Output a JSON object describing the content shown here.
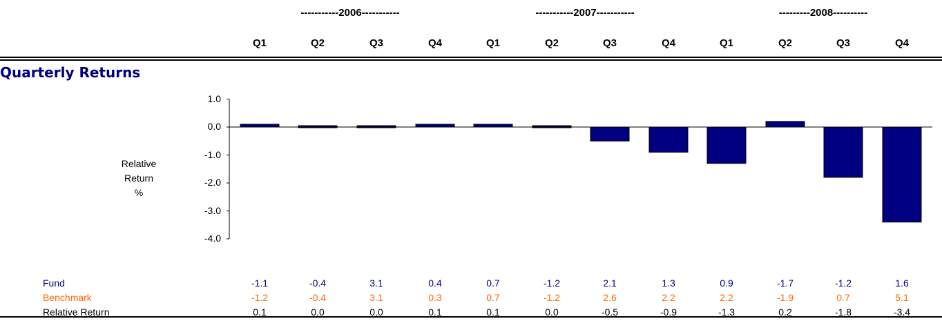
{
  "header": {
    "years": [
      "-----------2006-----------",
      "-----------2007-----------",
      "---------2008----------"
    ],
    "quarters": [
      "Q1",
      "Q2",
      "Q3",
      "Q4",
      "Q1",
      "Q2",
      "Q3",
      "Q4",
      "Q1",
      "Q2",
      "Q3",
      "Q4"
    ]
  },
  "section_title": "Quarterly Returns",
  "colors": {
    "bar": "#000080",
    "fund": "#000080",
    "benchmark": "#FF6600",
    "relative": "#000000"
  },
  "chart_data": {
    "type": "bar",
    "categories": [
      "2006 Q1",
      "2006 Q2",
      "2006 Q3",
      "2006 Q4",
      "2007 Q1",
      "2007 Q2",
      "2007 Q3",
      "2007 Q4",
      "2008 Q1",
      "2008 Q2",
      "2008 Q3",
      "2008 Q4"
    ],
    "values": [
      0.1,
      0.0,
      0.0,
      0.1,
      0.1,
      0.0,
      -0.5,
      -0.9,
      -1.3,
      0.2,
      -1.8,
      -3.4
    ],
    "ylabel_lines": [
      "Relative",
      "Return",
      "%"
    ],
    "ylim": [
      -4.0,
      1.0
    ],
    "yticks": [
      "1.0",
      "0.0",
      "-1.0",
      "-2.0",
      "-3.0",
      "-4.0"
    ],
    "ytick_values": [
      1,
      0,
      -1,
      -2,
      -3,
      -4
    ],
    "grid": false
  },
  "table": {
    "rows": [
      {
        "label": "Fund",
        "color": "#000080",
        "values": [
          "-1.1",
          "-0.4",
          "3.1",
          "0.4",
          "0.7",
          "-1.2",
          "2.1",
          "1.3",
          "0.9",
          "-1.7",
          "-1.2",
          "1.6"
        ]
      },
      {
        "label": "Benchmark",
        "color": "#FF6600",
        "values": [
          "-1.2",
          "-0.4",
          "3.1",
          "0.3",
          "0.7",
          "-1.2",
          "2.6",
          "2.2",
          "2.2",
          "-1.9",
          "0.7",
          "5.1"
        ]
      },
      {
        "label": "Relative Return",
        "color": "#000000",
        "values": [
          "0.1",
          "0.0",
          "0.0",
          "0.1",
          "0.1",
          "0.0",
          "-0.5",
          "-0.9",
          "-1.3",
          "0.2",
          "-1.8",
          "-3.4"
        ]
      }
    ]
  }
}
